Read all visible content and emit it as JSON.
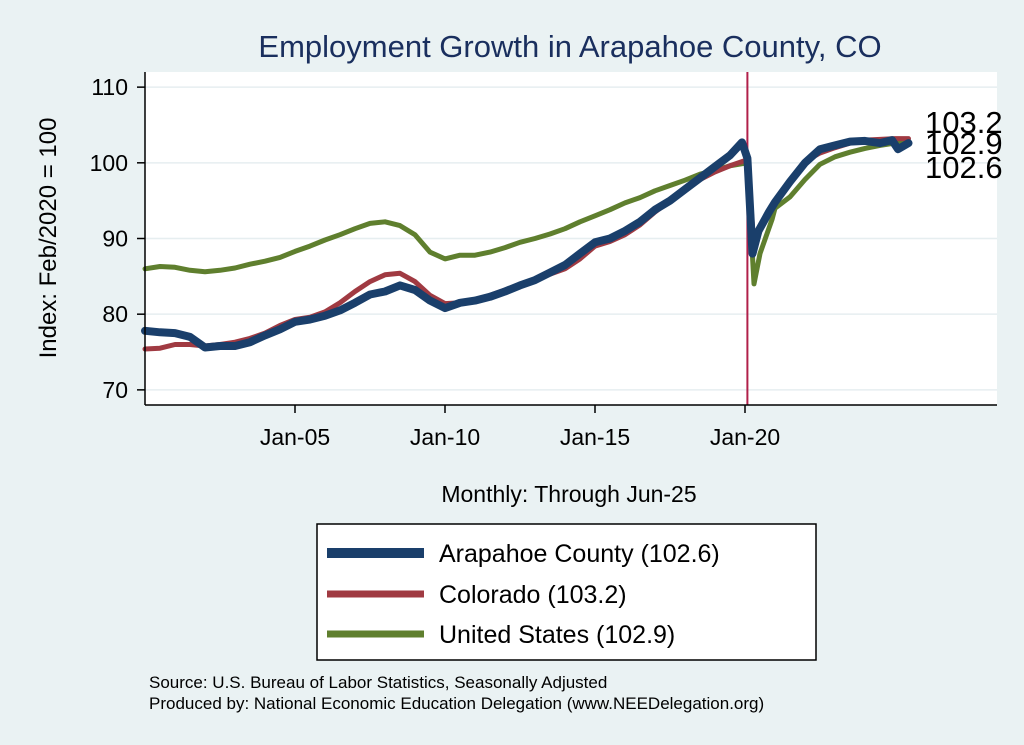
{
  "chart_data": {
    "type": "line",
    "title": "Employment Growth in Arapahoe  County, CO",
    "ylabel": "Index: Feb/2020 = 100",
    "xlabel": "Monthly: Through Jun-25",
    "ylim": [
      68,
      112
    ],
    "yticks": [
      70,
      80,
      90,
      100,
      110
    ],
    "xlim": [
      2000.0,
      2028.4
    ],
    "xticks": [
      {
        "value": 2005.0,
        "label": "Jan-05"
      },
      {
        "value": 2010.0,
        "label": "Jan-10"
      },
      {
        "value": 2015.0,
        "label": "Jan-15"
      },
      {
        "value": 2020.0,
        "label": "Jan-20"
      }
    ],
    "reference_line": {
      "x": 2020.08,
      "color": "#b0204a"
    },
    "end_labels": [
      "103.2",
      "102.9",
      "102.6"
    ],
    "legend": [
      "Arapahoe  County (102.6)",
      "Colorado (103.2)",
      "United States (102.9)"
    ],
    "series": [
      {
        "name": "Arapahoe  County",
        "color": "#1a3f6b",
        "width": 8,
        "points": [
          [
            2000.0,
            77.8
          ],
          [
            2000.5,
            77.6
          ],
          [
            2001.0,
            77.5
          ],
          [
            2001.5,
            77.0
          ],
          [
            2002.0,
            75.6
          ],
          [
            2002.5,
            75.8
          ],
          [
            2003.0,
            75.8
          ],
          [
            2003.5,
            76.3
          ],
          [
            2004.0,
            77.2
          ],
          [
            2004.5,
            78.0
          ],
          [
            2005.0,
            79.0
          ],
          [
            2005.5,
            79.3
          ],
          [
            2006.0,
            79.8
          ],
          [
            2006.5,
            80.5
          ],
          [
            2007.0,
            81.5
          ],
          [
            2007.5,
            82.6
          ],
          [
            2008.0,
            83.0
          ],
          [
            2008.5,
            83.8
          ],
          [
            2009.0,
            83.2
          ],
          [
            2009.5,
            81.8
          ],
          [
            2010.0,
            80.8
          ],
          [
            2010.5,
            81.5
          ],
          [
            2011.0,
            81.8
          ],
          [
            2011.5,
            82.3
          ],
          [
            2012.0,
            83.0
          ],
          [
            2012.5,
            83.8
          ],
          [
            2013.0,
            84.5
          ],
          [
            2013.5,
            85.5
          ],
          [
            2014.0,
            86.5
          ],
          [
            2014.5,
            88.0
          ],
          [
            2015.0,
            89.5
          ],
          [
            2015.5,
            90.0
          ],
          [
            2016.0,
            91.0
          ],
          [
            2016.5,
            92.2
          ],
          [
            2017.0,
            93.8
          ],
          [
            2017.5,
            95.0
          ],
          [
            2018.0,
            96.5
          ],
          [
            2018.5,
            98.0
          ],
          [
            2019.0,
            99.5
          ],
          [
            2019.5,
            101.0
          ],
          [
            2019.9,
            102.7
          ],
          [
            2020.08,
            100.6
          ],
          [
            2020.25,
            88.0
          ],
          [
            2020.45,
            91.0
          ],
          [
            2020.8,
            93.5
          ],
          [
            2021.0,
            94.8
          ],
          [
            2021.5,
            97.5
          ],
          [
            2022.0,
            100.0
          ],
          [
            2022.5,
            101.8
          ],
          [
            2023.0,
            102.3
          ],
          [
            2023.5,
            102.8
          ],
          [
            2024.0,
            102.9
          ],
          [
            2024.5,
            102.6
          ],
          [
            2024.9,
            103.0
          ],
          [
            2025.1,
            101.8
          ],
          [
            2025.45,
            102.6
          ]
        ]
      },
      {
        "name": "Colorado",
        "color": "#a03a42",
        "width": 5,
        "points": [
          [
            2000.0,
            75.4
          ],
          [
            2000.5,
            75.5
          ],
          [
            2001.0,
            76.0
          ],
          [
            2001.5,
            76.0
          ],
          [
            2002.0,
            75.8
          ],
          [
            2002.5,
            76.0
          ],
          [
            2003.0,
            76.3
          ],
          [
            2003.5,
            76.8
          ],
          [
            2004.0,
            77.5
          ],
          [
            2004.5,
            78.5
          ],
          [
            2005.0,
            79.3
          ],
          [
            2005.5,
            79.6
          ],
          [
            2006.0,
            80.3
          ],
          [
            2006.5,
            81.5
          ],
          [
            2007.0,
            83.0
          ],
          [
            2007.5,
            84.3
          ],
          [
            2008.0,
            85.2
          ],
          [
            2008.5,
            85.4
          ],
          [
            2009.0,
            84.3
          ],
          [
            2009.5,
            82.5
          ],
          [
            2010.0,
            81.4
          ],
          [
            2010.5,
            81.5
          ],
          [
            2011.0,
            81.8
          ],
          [
            2011.5,
            82.5
          ],
          [
            2012.0,
            83.2
          ],
          [
            2012.5,
            83.8
          ],
          [
            2013.0,
            84.5
          ],
          [
            2013.5,
            85.3
          ],
          [
            2014.0,
            86.0
          ],
          [
            2014.5,
            87.3
          ],
          [
            2015.0,
            89.0
          ],
          [
            2015.5,
            89.6
          ],
          [
            2016.0,
            90.5
          ],
          [
            2016.5,
            91.8
          ],
          [
            2017.0,
            93.5
          ],
          [
            2017.5,
            95.0
          ],
          [
            2018.0,
            96.5
          ],
          [
            2018.5,
            97.8
          ],
          [
            2019.0,
            98.8
          ],
          [
            2019.5,
            99.6
          ],
          [
            2020.08,
            100.4
          ],
          [
            2020.3,
            89.0
          ],
          [
            2020.6,
            92.0
          ],
          [
            2021.0,
            94.5
          ],
          [
            2021.5,
            97.5
          ],
          [
            2022.0,
            100.2
          ],
          [
            2022.5,
            101.3
          ],
          [
            2023.0,
            102.0
          ],
          [
            2023.5,
            102.6
          ],
          [
            2024.0,
            103.0
          ],
          [
            2024.5,
            103.1
          ],
          [
            2025.0,
            103.2
          ],
          [
            2025.45,
            103.2
          ]
        ]
      },
      {
        "name": "United States",
        "color": "#5f7f2e",
        "width": 5,
        "points": [
          [
            2000.0,
            86.0
          ],
          [
            2000.5,
            86.3
          ],
          [
            2001.0,
            86.2
          ],
          [
            2001.5,
            85.8
          ],
          [
            2002.0,
            85.6
          ],
          [
            2002.5,
            85.8
          ],
          [
            2003.0,
            86.1
          ],
          [
            2003.5,
            86.6
          ],
          [
            2004.0,
            87.0
          ],
          [
            2004.5,
            87.5
          ],
          [
            2005.0,
            88.3
          ],
          [
            2005.5,
            89.0
          ],
          [
            2006.0,
            89.8
          ],
          [
            2006.5,
            90.5
          ],
          [
            2007.0,
            91.3
          ],
          [
            2007.5,
            92.0
          ],
          [
            2008.0,
            92.2
          ],
          [
            2008.5,
            91.7
          ],
          [
            2009.0,
            90.5
          ],
          [
            2009.5,
            88.2
          ],
          [
            2010.0,
            87.3
          ],
          [
            2010.5,
            87.8
          ],
          [
            2011.0,
            87.8
          ],
          [
            2011.5,
            88.2
          ],
          [
            2012.0,
            88.8
          ],
          [
            2012.5,
            89.5
          ],
          [
            2013.0,
            90.0
          ],
          [
            2013.5,
            90.6
          ],
          [
            2014.0,
            91.3
          ],
          [
            2014.5,
            92.2
          ],
          [
            2015.0,
            93.0
          ],
          [
            2015.5,
            93.8
          ],
          [
            2016.0,
            94.7
          ],
          [
            2016.5,
            95.4
          ],
          [
            2017.0,
            96.3
          ],
          [
            2017.5,
            97.0
          ],
          [
            2018.0,
            97.7
          ],
          [
            2018.5,
            98.5
          ],
          [
            2019.0,
            99.0
          ],
          [
            2019.5,
            99.6
          ],
          [
            2020.08,
            100.0
          ],
          [
            2020.3,
            84.0
          ],
          [
            2020.5,
            88.0
          ],
          [
            2020.9,
            92.5
          ],
          [
            2021.0,
            94.0
          ],
          [
            2021.5,
            95.5
          ],
          [
            2022.0,
            97.8
          ],
          [
            2022.5,
            99.8
          ],
          [
            2023.0,
            100.8
          ],
          [
            2023.5,
            101.4
          ],
          [
            2024.0,
            101.9
          ],
          [
            2024.5,
            102.3
          ],
          [
            2025.0,
            102.6
          ],
          [
            2025.45,
            102.9
          ]
        ]
      }
    ]
  },
  "footer": {
    "source": "Source: U.S. Bureau of Labor Statistics, Seasonally Adjusted",
    "produced_by": "Produced by: National Economic Education Delegation (www.NEEDelegation.org)"
  }
}
